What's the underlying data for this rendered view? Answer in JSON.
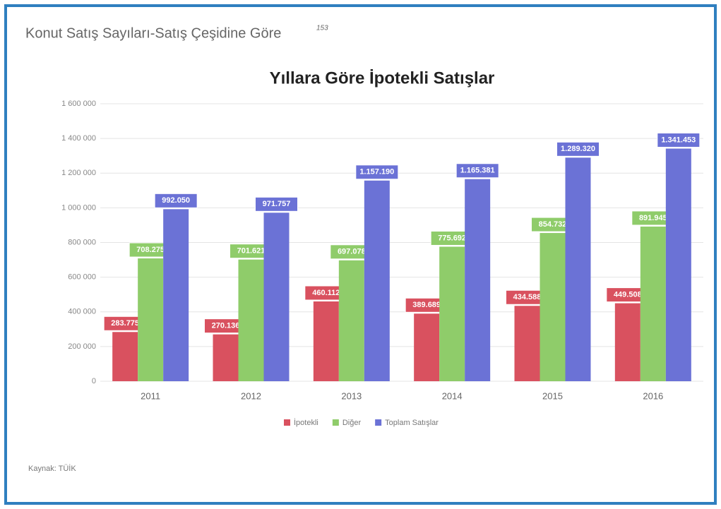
{
  "page": {
    "heading": "Konut Satış Sayıları-Satış Çeşidine Göre",
    "note": "153",
    "source": "Kaynak: TÜİK"
  },
  "chart_data": {
    "type": "bar",
    "title": "Yıllara Göre İpotekli Satışlar",
    "categories": [
      "2011",
      "2012",
      "2013",
      "2014",
      "2015",
      "2016"
    ],
    "series": [
      {
        "name": "İpotekli",
        "color": "#d9515f",
        "values": [
          283775,
          270136,
          460112,
          389689,
          434588,
          449508
        ],
        "value_labels": [
          "283.775",
          "270.136",
          "460.112",
          "389.689",
          "434.588",
          "449.508"
        ]
      },
      {
        "name": "Diğer",
        "color": "#8fcc6a",
        "values": [
          708275,
          701621,
          697078,
          775692,
          854732,
          891945
        ],
        "value_labels": [
          "708.275",
          "701.621",
          "697.078",
          "775.692",
          "854.732",
          "891.945"
        ]
      },
      {
        "name": "Toplam Satışlar",
        "color": "#6b72d6",
        "values": [
          992050,
          971757,
          1157190,
          1165381,
          1289320,
          1341453
        ],
        "value_labels": [
          "992.050",
          "971.757",
          "1.157.190",
          "1.165.381",
          "1.289.320",
          "1.341.453"
        ]
      }
    ],
    "ylim": [
      0,
      1600000
    ],
    "yticks": [
      0,
      {
        "value": 200000,
        "label": "200 000"
      },
      {
        "value": 400000,
        "label": "400 000"
      },
      {
        "value": 600000,
        "label": "600 000"
      },
      {
        "value": 800000,
        "label": "800 000"
      },
      {
        "value": 1000000,
        "label": "1 000 000"
      },
      {
        "value": 1200000,
        "label": "1 200 000"
      },
      {
        "value": 1400000,
        "label": "1 400 000"
      },
      {
        "value": 1600000,
        "label": "1 600 000"
      }
    ],
    "grid": true,
    "legend": "bottom"
  }
}
